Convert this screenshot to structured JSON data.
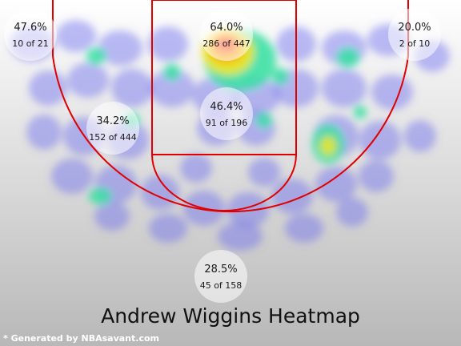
{
  "chart_data": {
    "type": "heatmap",
    "title": "Andrew Wiggins Heatmap",
    "credit": "* Generated by NBAsavant.com",
    "zones": [
      {
        "id": "left-corner-three",
        "pct": "47.6%",
        "made_of": "10 of 21",
        "made": 10,
        "attempts": 21
      },
      {
        "id": "restricted-area",
        "pct": "64.0%",
        "made_of": "286 of 447",
        "made": 286,
        "attempts": 447
      },
      {
        "id": "right-corner-three",
        "pct": "20.0%",
        "made_of": "2 of 10",
        "made": 2,
        "attempts": 10
      },
      {
        "id": "paint-non-ra",
        "pct": "46.4%",
        "made_of": "91 of 196",
        "made": 91,
        "attempts": 196
      },
      {
        "id": "mid-range",
        "pct": "34.2%",
        "made_of": "152 of 444",
        "made": 152,
        "attempts": 444
      },
      {
        "id": "above-break-three",
        "pct": "28.5%",
        "made_of": "45 of 158",
        "made": 45,
        "attempts": 158
      }
    ],
    "colors": {
      "court_lines": "#e00000",
      "background_top": "#ffffff",
      "background_bottom": "#b8b8b8",
      "heat_low": "#6a6af0",
      "heat_mid": "#33e0a0",
      "heat_high": "#ff3a1a"
    }
  }
}
